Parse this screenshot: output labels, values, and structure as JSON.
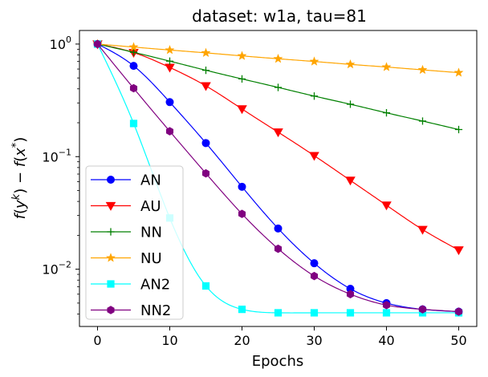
{
  "chart_data": {
    "type": "line",
    "title": "dataset: w1a, tau=81",
    "xlabel": "Epochs",
    "ylabel": "f(y^k) − f(x*)",
    "yscale": "log",
    "xlim": [
      -2.5,
      52.5
    ],
    "ylim": [
      0.0031,
      1.32
    ],
    "xticks": [
      0,
      10,
      20,
      30,
      40,
      50
    ],
    "xtick_labels": [
      "0",
      "10",
      "20",
      "30",
      "40",
      "50"
    ],
    "yticks": [
      {
        "value": 1,
        "base": "10",
        "exp": "0"
      },
      {
        "value": 0.1,
        "base": "10",
        "exp": "−1"
      },
      {
        "value": 0.01,
        "base": "10",
        "exp": "−2"
      }
    ],
    "legend_position": "lower-left",
    "x": [
      0,
      5,
      10,
      15,
      20,
      25,
      30,
      35,
      40,
      45,
      50
    ],
    "series": [
      {
        "name": "AN",
        "color": "#0000ff",
        "marker": "circle",
        "values": [
          1.0,
          0.64,
          0.305,
          0.132,
          0.054,
          0.023,
          0.0113,
          0.0067,
          0.005,
          0.0044,
          0.0042
        ]
      },
      {
        "name": "AU",
        "color": "#ff0000",
        "marker": "triangle-down",
        "values": [
          1.0,
          0.84,
          0.62,
          0.425,
          0.265,
          0.165,
          0.102,
          0.0615,
          0.037,
          0.0225,
          0.0148
        ]
      },
      {
        "name": "NN",
        "color": "#008000",
        "marker": "plus",
        "values": [
          1.0,
          0.845,
          0.705,
          0.585,
          0.49,
          0.412,
          0.345,
          0.292,
          0.245,
          0.207,
          0.174
        ]
      },
      {
        "name": "NU",
        "color": "#ffa500",
        "marker": "star",
        "values": [
          1.0,
          0.94,
          0.885,
          0.835,
          0.785,
          0.74,
          0.7,
          0.66,
          0.625,
          0.59,
          0.557
        ]
      },
      {
        "name": "AN2",
        "color": "#00ffff",
        "marker": "square",
        "values": [
          1.0,
          0.197,
          0.0285,
          0.0071,
          0.0044,
          0.0041,
          0.0041,
          0.0041,
          0.0041,
          0.0041,
          0.0041
        ]
      },
      {
        "name": "NN2",
        "color": "#800080",
        "marker": "hexagon",
        "values": [
          1.0,
          0.405,
          0.168,
          0.071,
          0.031,
          0.0152,
          0.0087,
          0.006,
          0.0048,
          0.0044,
          0.0042
        ]
      }
    ]
  }
}
